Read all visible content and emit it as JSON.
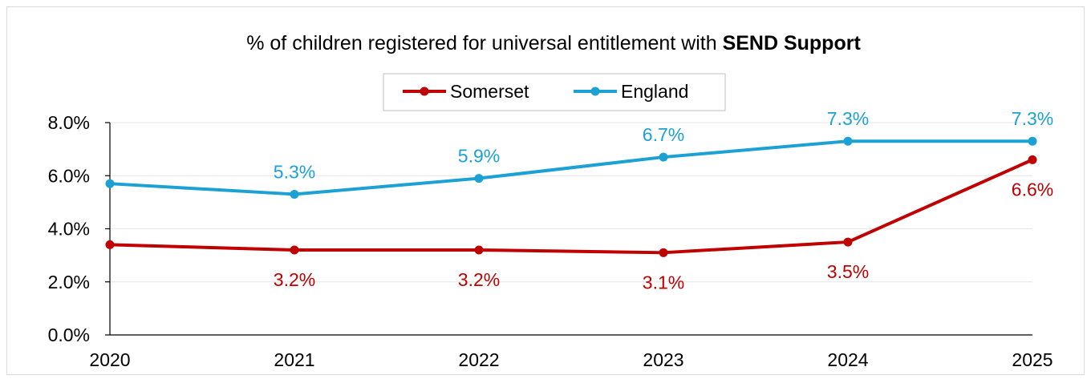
{
  "chart_data": {
    "type": "line",
    "title_prefix": "% of children registered for universal entitlement with ",
    "title_emphasis": "SEND Support",
    "categories": [
      "2020",
      "2021",
      "2022",
      "2023",
      "2024",
      "2025"
    ],
    "ylim": [
      0,
      8
    ],
    "yticks": [
      0,
      2,
      4,
      6,
      8
    ],
    "ytick_labels": [
      "0.0%",
      "2.0%",
      "4.0%",
      "6.0%",
      "8.0%"
    ],
    "grid": true,
    "legend_position": "top-center",
    "series": [
      {
        "name": "Somerset",
        "color": "#c00000",
        "values": [
          3.4,
          3.2,
          3.2,
          3.1,
          3.5,
          6.6
        ],
        "labels": [
          "",
          "3.2%",
          "3.2%",
          "3.1%",
          "3.5%",
          "6.6%"
        ],
        "label_position": "below"
      },
      {
        "name": "England",
        "color": "#1ba1d4",
        "values": [
          5.7,
          5.3,
          5.9,
          6.7,
          7.3,
          7.3
        ],
        "labels": [
          "",
          "5.3%",
          "5.9%",
          "6.7%",
          "7.3%",
          "7.3%"
        ],
        "label_position": "above"
      }
    ]
  }
}
